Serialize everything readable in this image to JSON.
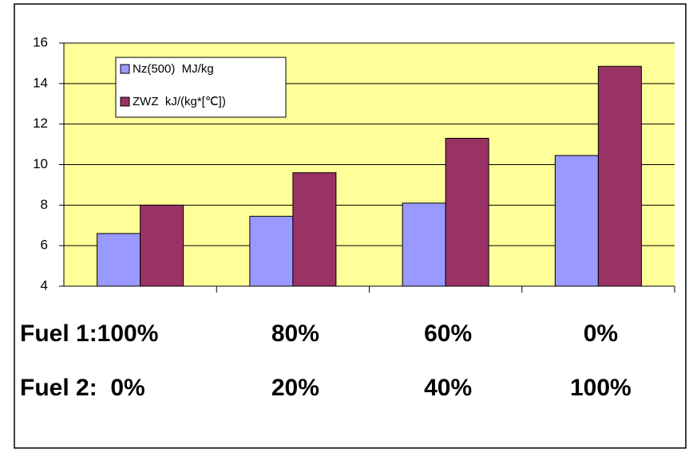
{
  "chart_data": {
    "type": "bar",
    "categories": [
      [
        "Fuel 1:100%",
        "Fuel 2:  0%"
      ],
      [
        "80%",
        "20%"
      ],
      [
        "60%",
        "40%"
      ],
      [
        "0%",
        "100%"
      ]
    ],
    "series": [
      {
        "name": "Nz(500)  MJ/kg",
        "color": "#9999ff",
        "values": [
          6.6,
          7.45,
          8.1,
          10.45
        ]
      },
      {
        "name": "ZWZ  kJ/(kg*[℃])",
        "color": "#993366",
        "values": [
          8.0,
          9.6,
          11.3,
          14.85
        ]
      }
    ],
    "ylim": [
      4,
      16
    ],
    "yticks": [
      4,
      6,
      8,
      10,
      12,
      14,
      16
    ],
    "grid": true,
    "legend": "upper left",
    "plot_background": "#ffff99"
  }
}
